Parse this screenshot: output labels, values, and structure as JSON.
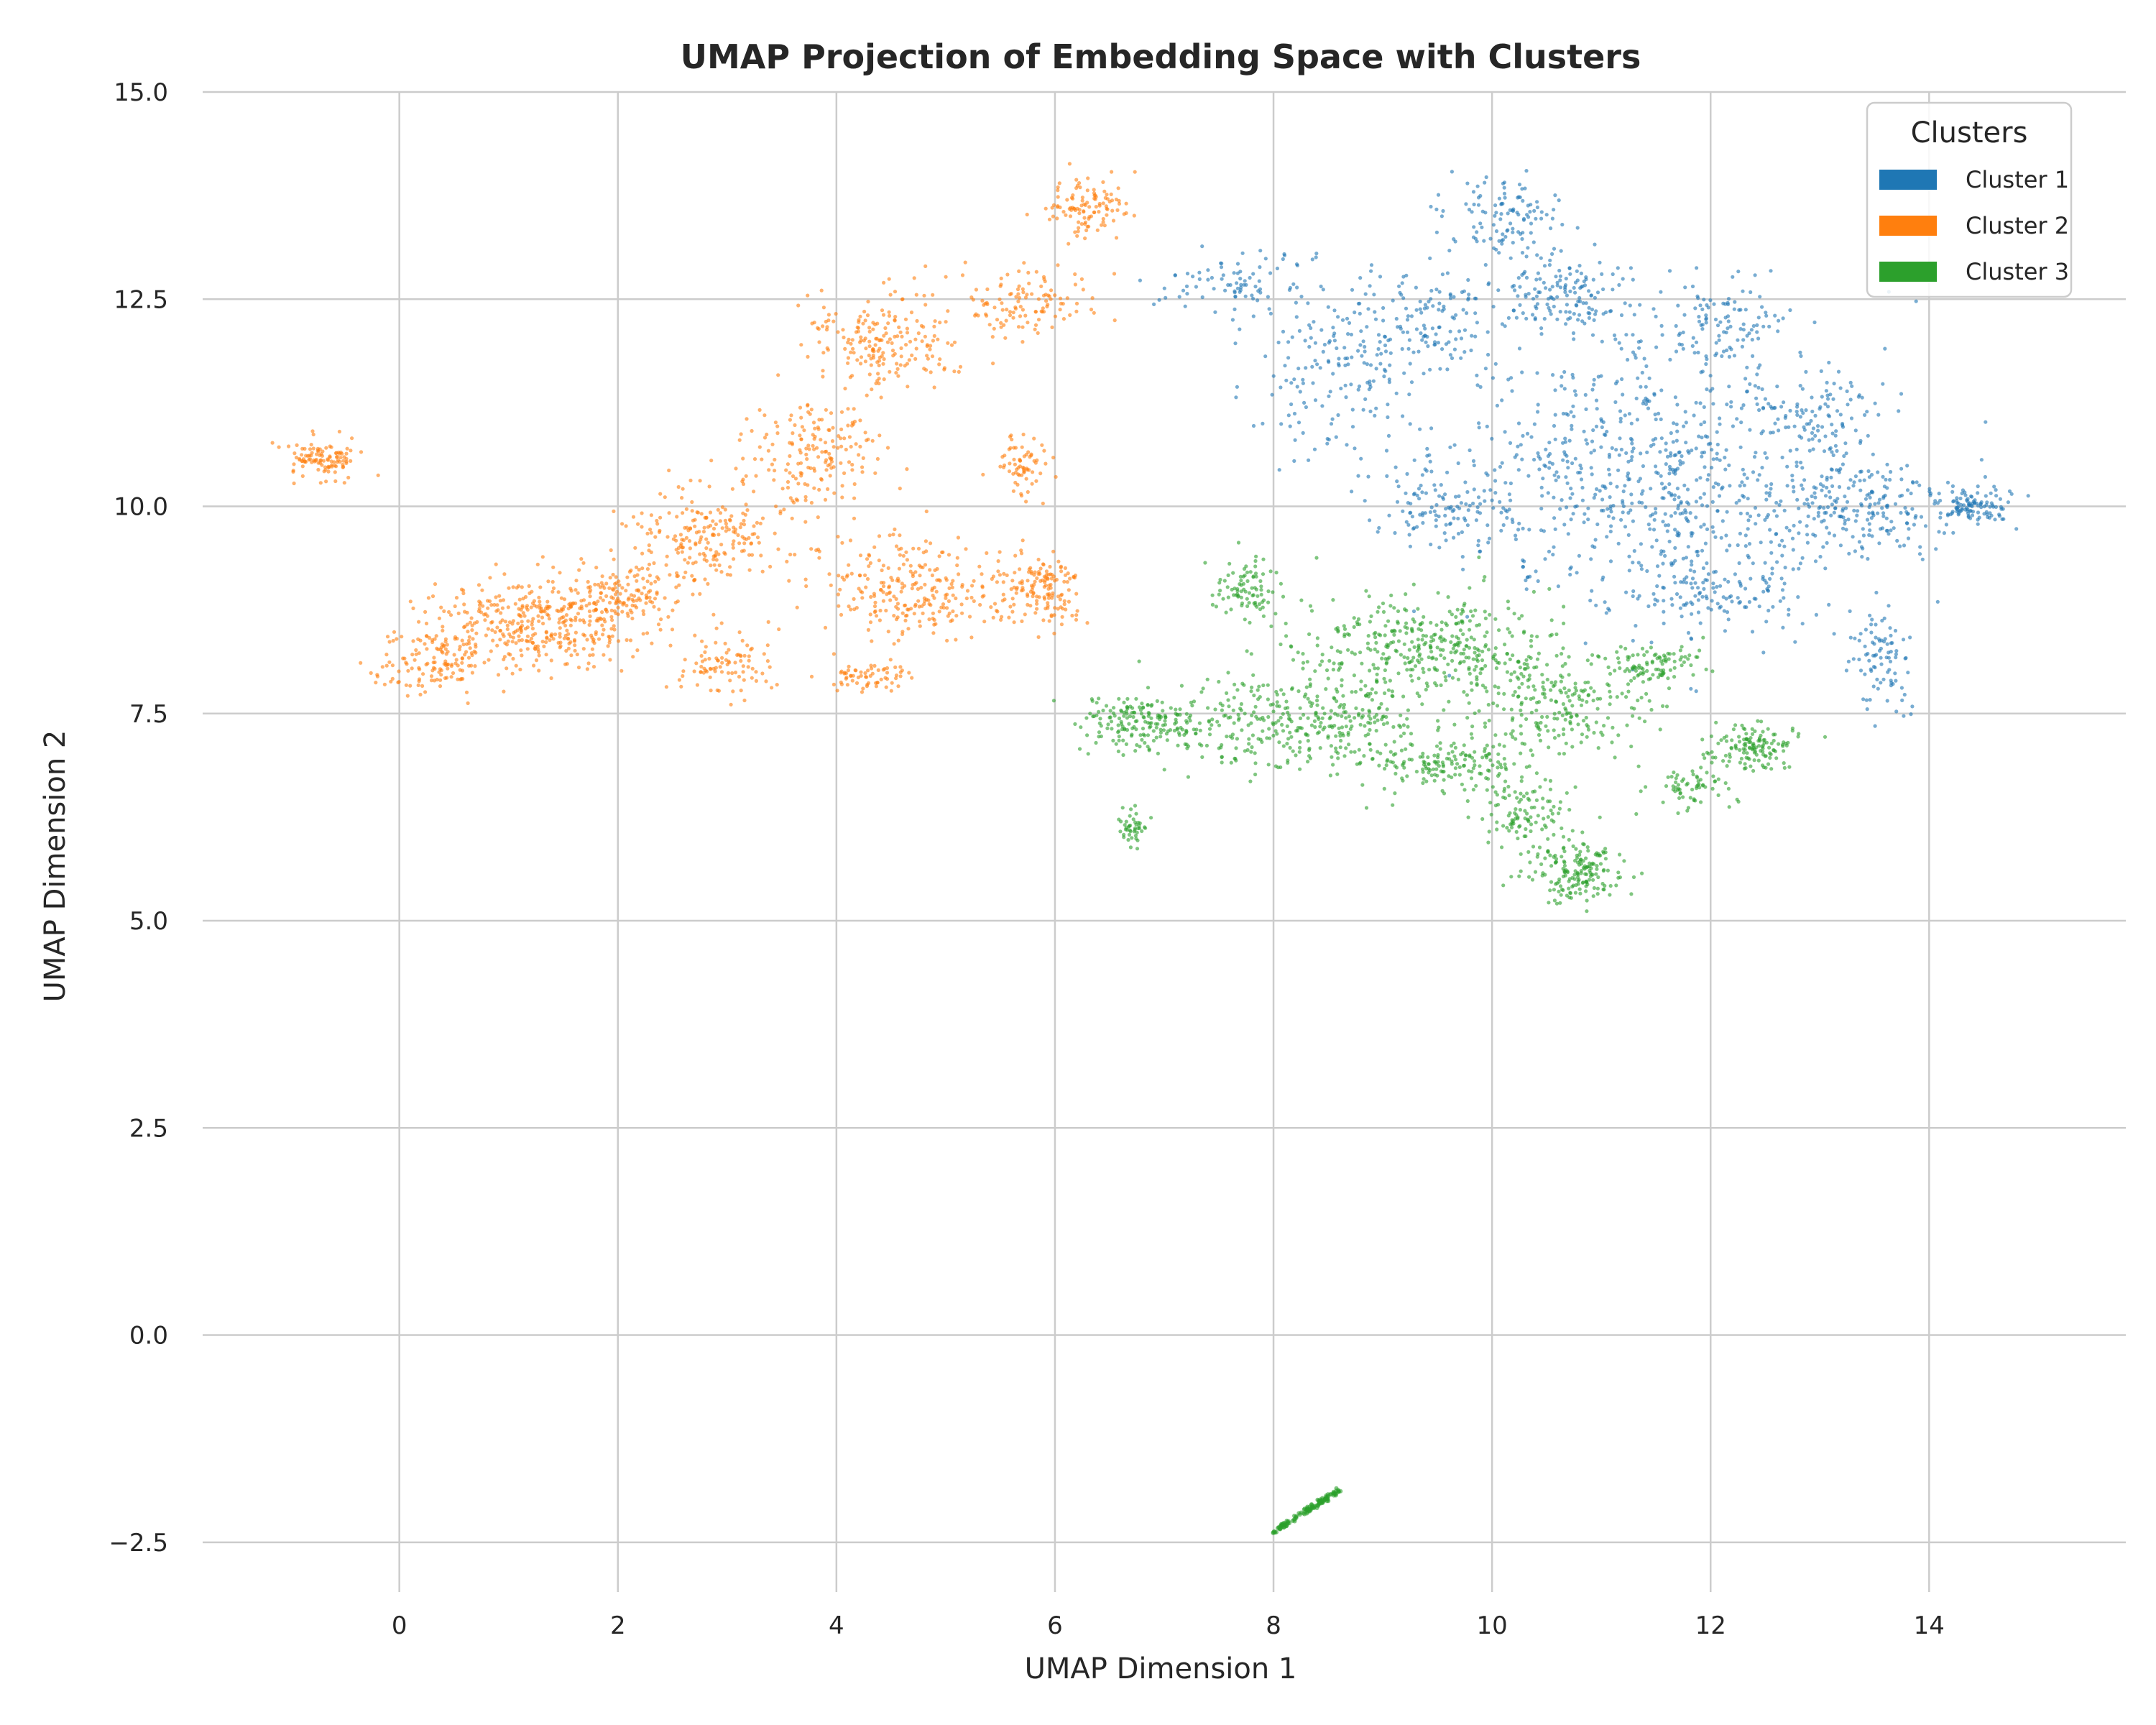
{
  "chart_data": {
    "type": "scatter",
    "title": "UMAP Projection of Embedding Space with Clusters",
    "xlabel": "UMAP Dimension 1",
    "ylabel": "UMAP Dimension 2",
    "xlim": [
      -1.8,
      15.8
    ],
    "ylim": [
      -3.1,
      15.0
    ],
    "x_ticks": [
      0,
      2,
      4,
      6,
      8,
      10,
      12,
      14
    ],
    "y_ticks": [
      -2.5,
      0.0,
      2.5,
      5.0,
      7.5,
      10.0,
      12.5,
      15.0
    ],
    "x_tick_labels": [
      "0",
      "2",
      "4",
      "6",
      "8",
      "10",
      "12",
      "14"
    ],
    "y_tick_labels": [
      "−2.5",
      "0.0",
      "2.5",
      "5.0",
      "7.5",
      "10.0",
      "12.5",
      "15.0"
    ],
    "grid": true,
    "legend": {
      "title": "Clusters",
      "placement": "top-right"
    },
    "series": [
      {
        "name": "Cluster 1",
        "color": "#1f77b4",
        "regions": [
          {
            "center": [
              11.5,
              10.3
            ],
            "spread": [
              1.6,
              1.3
            ],
            "weight": 0.34
          },
          {
            "center": [
              9.4,
              12.2
            ],
            "spread": [
              0.6,
              0.6
            ],
            "weight": 0.07
          },
          {
            "center": [
              10.7,
              12.6
            ],
            "spread": [
              0.5,
              0.45
            ],
            "weight": 0.07
          },
          {
            "center": [
              12.1,
              12.2
            ],
            "spread": [
              0.5,
              0.5
            ],
            "weight": 0.05
          },
          {
            "center": [
              8.5,
              11.6
            ],
            "spread": [
              0.6,
              0.8
            ],
            "weight": 0.06
          },
          {
            "center": [
              13.4,
              10.0
            ],
            "spread": [
              0.7,
              0.5
            ],
            "weight": 0.08
          },
          {
            "center": [
              14.4,
              10.0
            ],
            "spread": [
              0.3,
              0.2
            ],
            "weight": 0.05
          },
          {
            "center": [
              12.0,
              9.0
            ],
            "spread": [
              0.8,
              0.5
            ],
            "weight": 0.06
          },
          {
            "center": [
              13.6,
              8.2
            ],
            "spread": [
              0.2,
              0.5
            ],
            "weight": 0.04
          },
          {
            "center": [
              9.5,
              10.0
            ],
            "spread": [
              0.5,
              0.4
            ],
            "weight": 0.05
          },
          {
            "center": [
              7.7,
              12.7
            ],
            "spread": [
              0.6,
              0.35
            ],
            "weight": 0.04
          },
          {
            "center": [
              10.1,
              13.5
            ],
            "spread": [
              0.45,
              0.4
            ],
            "weight": 0.05
          },
          {
            "center": [
              13.0,
              11.0
            ],
            "spread": [
              0.5,
              0.5
            ],
            "weight": 0.04
          }
        ]
      },
      {
        "name": "Cluster 2",
        "color": "#ff7f0e",
        "regions": [
          {
            "center": [
              1.3,
              8.6
            ],
            "spread": [
              0.9,
              0.45
            ],
            "weight": 0.18
          },
          {
            "center": [
              0.3,
              8.1
            ],
            "spread": [
              0.45,
              0.3
            ],
            "weight": 0.06
          },
          {
            "center": [
              -0.7,
              10.6
            ],
            "spread": [
              0.25,
              0.2
            ],
            "weight": 0.05
          },
          {
            "center": [
              2.8,
              9.6
            ],
            "spread": [
              0.6,
              0.5
            ],
            "weight": 0.1
          },
          {
            "center": [
              3.8,
              10.6
            ],
            "spread": [
              0.5,
              0.6
            ],
            "weight": 0.08
          },
          {
            "center": [
              4.5,
              12.0
            ],
            "spread": [
              0.6,
              0.5
            ],
            "weight": 0.09
          },
          {
            "center": [
              5.7,
              12.5
            ],
            "spread": [
              0.5,
              0.35
            ],
            "weight": 0.05
          },
          {
            "center": [
              6.3,
              13.6
            ],
            "spread": [
              0.3,
              0.3
            ],
            "weight": 0.05
          },
          {
            "center": [
              4.8,
              9.0
            ],
            "spread": [
              0.8,
              0.5
            ],
            "weight": 0.12
          },
          {
            "center": [
              5.9,
              9.0
            ],
            "spread": [
              0.3,
              0.4
            ],
            "weight": 0.06
          },
          {
            "center": [
              5.7,
              10.5
            ],
            "spread": [
              0.2,
              0.3
            ],
            "weight": 0.03
          },
          {
            "center": [
              3.0,
              8.1
            ],
            "spread": [
              0.4,
              0.3
            ],
            "weight": 0.04
          },
          {
            "center": [
              2.0,
              8.9
            ],
            "spread": [
              0.4,
              0.3
            ],
            "weight": 0.05
          },
          {
            "center": [
              4.3,
              7.95
            ],
            "spread": [
              0.3,
              0.15
            ],
            "weight": 0.03
          }
        ]
      },
      {
        "name": "Cluster 3",
        "color": "#2ca02c",
        "regions": [
          {
            "center": [
              9.4,
              8.3
            ],
            "spread": [
              1.0,
              0.5
            ],
            "weight": 0.18
          },
          {
            "center": [
              8.2,
              7.4
            ],
            "spread": [
              1.0,
              0.5
            ],
            "weight": 0.16
          },
          {
            "center": [
              6.8,
              7.4
            ],
            "spread": [
              0.5,
              0.3
            ],
            "weight": 0.08
          },
          {
            "center": [
              10.6,
              7.6
            ],
            "spread": [
              0.7,
              0.5
            ],
            "weight": 0.1
          },
          {
            "center": [
              10.8,
              5.6
            ],
            "spread": [
              0.35,
              0.3
            ],
            "weight": 0.08
          },
          {
            "center": [
              10.3,
              6.3
            ],
            "spread": [
              0.4,
              0.4
            ],
            "weight": 0.05
          },
          {
            "center": [
              12.4,
              7.1
            ],
            "spread": [
              0.35,
              0.25
            ],
            "weight": 0.06
          },
          {
            "center": [
              11.8,
              6.6
            ],
            "spread": [
              0.3,
              0.2
            ],
            "weight": 0.03
          },
          {
            "center": [
              11.5,
              8.1
            ],
            "spread": [
              0.4,
              0.2
            ],
            "weight": 0.04
          },
          {
            "center": [
              7.7,
              9.0
            ],
            "spread": [
              0.3,
              0.3
            ],
            "weight": 0.04
          },
          {
            "center": [
              9.5,
              6.9
            ],
            "spread": [
              0.6,
              0.25
            ],
            "weight": 0.07
          },
          {
            "center": [
              6.7,
              6.1
            ],
            "spread": [
              0.1,
              0.2
            ],
            "weight": 0.02
          }
        ],
        "segments": [
          {
            "from": [
              8.0,
              -2.38
            ],
            "to": [
              8.6,
              -1.87
            ],
            "weight": 0.06
          }
        ]
      }
    ],
    "point_count_per_series": 2200
  }
}
